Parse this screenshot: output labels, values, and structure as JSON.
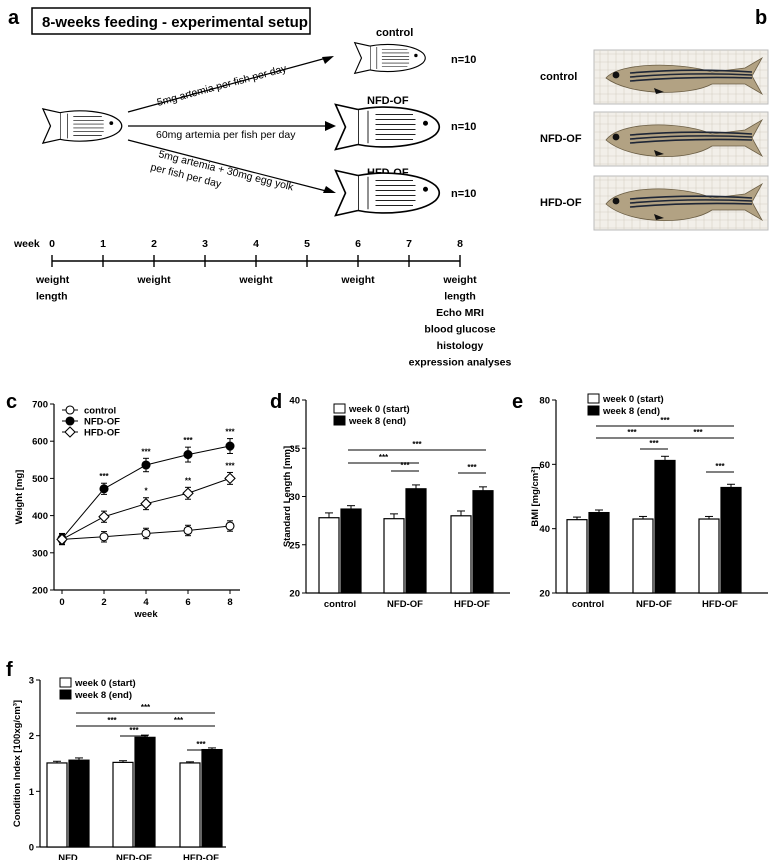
{
  "panel_a": {
    "label": "a",
    "title": "8-weeks feeding - experimental setup",
    "feeding": [
      "5mg artemia per fish per day",
      "60mg artemia per fish per day",
      "5mg artemia + 30mg egg yolk",
      "per fish per day"
    ],
    "groups": [
      {
        "name": "control",
        "n": "n=10"
      },
      {
        "name": "NFD-OF",
        "n": "n=10"
      },
      {
        "name": "HFD-OF",
        "n": "n=10"
      }
    ],
    "timeline": {
      "label": "week",
      "weeks": [
        "0",
        "1",
        "2",
        "3",
        "4",
        "5",
        "6",
        "7",
        "8"
      ],
      "measurements": [
        {
          "week": 0,
          "items": [
            "weight",
            "length"
          ]
        },
        {
          "week": 2,
          "items": [
            "weight"
          ]
        },
        {
          "week": 4,
          "items": [
            "weight"
          ]
        },
        {
          "week": 6,
          "items": [
            "weight"
          ]
        },
        {
          "week": 8,
          "items": [
            "weight",
            "length",
            "Echo MRI",
            "blood glucose",
            "histology",
            "expression analyses"
          ]
        }
      ]
    }
  },
  "panel_b": {
    "label": "b",
    "photos": [
      "control",
      "NFD-OF",
      "HFD-OF"
    ]
  },
  "panel_c": {
    "label": "c"
  },
  "panel_d": {
    "label": "d"
  },
  "panel_e": {
    "label": "e"
  },
  "panel_f": {
    "label": "f"
  },
  "chart_data": [
    {
      "id": "c",
      "type": "line",
      "xlabel": "week",
      "ylabel": "Weight [mg]",
      "x": [
        0,
        2,
        4,
        6,
        8
      ],
      "xticks": [
        "0",
        "2",
        "4",
        "6",
        "8"
      ],
      "ylim": [
        200,
        700
      ],
      "yticks": [
        "200",
        "300",
        "400",
        "500",
        "600",
        "700"
      ],
      "legend": [
        "control",
        "NFD-OF",
        "HFD-OF"
      ],
      "series": [
        {
          "name": "control",
          "marker": "open-circle",
          "values": [
            336,
            343,
            352,
            360,
            372
          ],
          "err": [
            14,
            14,
            14,
            14,
            14
          ],
          "sig": [
            "",
            "",
            "",
            "",
            ""
          ]
        },
        {
          "name": "NFD-OF",
          "marker": "filled-circle",
          "values": [
            338,
            472,
            536,
            564,
            587
          ],
          "err": [
            14,
            15,
            18,
            20,
            20
          ],
          "sig": [
            "",
            "***",
            "***",
            "***",
            "***"
          ]
        },
        {
          "name": "HFD-OF",
          "marker": "open-diamond",
          "values": [
            336,
            397,
            432,
            460,
            500
          ],
          "err": [
            14,
            15,
            16,
            16,
            16
          ],
          "sig": [
            "",
            "",
            "*",
            "**",
            "***"
          ]
        }
      ]
    },
    {
      "id": "d",
      "type": "bar",
      "ylabel": "Standard Length [mm]",
      "categories": [
        "control",
        "NFD-OF",
        "HFD-OF"
      ],
      "ylim": [
        20,
        40
      ],
      "yticks": [
        "20",
        "25",
        "30",
        "35",
        "40"
      ],
      "legend": [
        "week 0 (start)",
        "week 8 (end)"
      ],
      "series": [
        {
          "name": "week 0 (start)",
          "values": [
            27.8,
            27.7,
            28.0
          ],
          "err": [
            0.5,
            0.5,
            0.5
          ]
        },
        {
          "name": "week 8 (end)",
          "values": [
            28.7,
            30.8,
            30.6
          ],
          "err": [
            0.35,
            0.4,
            0.4
          ]
        }
      ],
      "brackets": [
        {
          "from": "control.1",
          "to": "NFD-OF.1",
          "label": "***"
        },
        {
          "from": "control.1",
          "to": "HFD-OF.1",
          "label": "***"
        },
        {
          "from": "NFD-OF.0",
          "to": "NFD-OF.1",
          "label": "***"
        },
        {
          "from": "HFD-OF.0",
          "to": "HFD-OF.1",
          "label": "***"
        }
      ]
    },
    {
      "id": "e",
      "type": "bar",
      "ylabel": "BMI [mg/cm²]",
      "categories": [
        "control",
        "NFD-OF",
        "HFD-OF"
      ],
      "ylim": [
        20,
        80
      ],
      "yticks": [
        "20",
        "40",
        "60",
        "80"
      ],
      "legend": [
        "week 0 (start)",
        "week 8 (end)"
      ],
      "series": [
        {
          "name": "week 0 (start)",
          "values": [
            42.8,
            43.0,
            43.0
          ],
          "err": [
            0.8,
            0.8,
            0.8
          ]
        },
        {
          "name": "week 8 (end)",
          "values": [
            45.0,
            61.2,
            52.8
          ],
          "err": [
            0.8,
            1.3,
            1.0
          ]
        }
      ],
      "brackets": [
        {
          "from": "control.1",
          "to": "HFD-OF.1",
          "label": "***"
        },
        {
          "from": "control.1",
          "to": "NFD-OF.1",
          "label": "***"
        },
        {
          "from": "NFD-OF.1",
          "to": "HFD-OF.1",
          "label": "***"
        },
        {
          "from": "NFD-OF.0",
          "to": "NFD-OF.1",
          "label": "***"
        },
        {
          "from": "HFD-OF.0",
          "to": "HFD-OF.1",
          "label": "***"
        }
      ]
    },
    {
      "id": "f",
      "type": "bar",
      "ylabel": "Condition Index [100xg/cm³]",
      "categories": [
        "NFD",
        "NFD-OF",
        "HFD-OF"
      ],
      "ylim": [
        0,
        3
      ],
      "yticks": [
        "0",
        "1",
        "2",
        "3"
      ],
      "legend": [
        "week 0 (start)",
        "week 8 (end)"
      ],
      "series": [
        {
          "name": "week 0 (start)",
          "values": [
            1.51,
            1.52,
            1.51
          ],
          "err": [
            0.03,
            0.03,
            0.02
          ]
        },
        {
          "name": "week 8 (end)",
          "values": [
            1.56,
            1.97,
            1.75
          ],
          "err": [
            0.04,
            0.04,
            0.03
          ]
        }
      ],
      "brackets": [
        {
          "from": "NFD.1",
          "to": "HFD-OF.1",
          "label": "***"
        },
        {
          "from": "NFD.1",
          "to": "NFD-OF.1",
          "label": "***"
        },
        {
          "from": "NFD-OF.1",
          "to": "HFD-OF.1",
          "label": "***"
        },
        {
          "from": "NFD-OF.0",
          "to": "NFD-OF.1",
          "label": "***"
        },
        {
          "from": "HFD-OF.0",
          "to": "HFD-OF.1",
          "label": "***"
        }
      ]
    }
  ]
}
